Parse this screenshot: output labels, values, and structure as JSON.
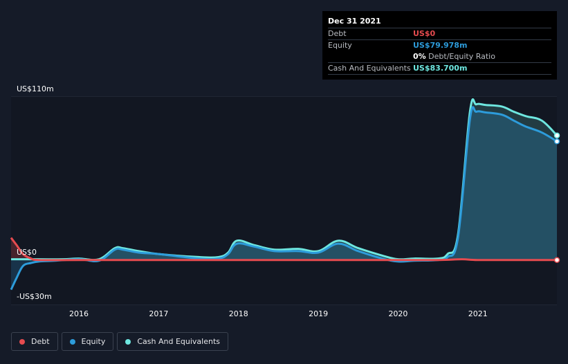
{
  "chart_data": {
    "type": "area",
    "x_labels": [
      "2016",
      "2017",
      "2018",
      "2019",
      "2020",
      "2021"
    ],
    "y_labels": {
      "top": "US$110m",
      "zero": "US$0",
      "bottom": "-US$30m"
    },
    "ylim": [
      -30,
      110
    ],
    "xlim": [
      2015.15,
      2021.99
    ],
    "series": [
      {
        "name": "Debt",
        "color": "#e64b4f",
        "x": [
          2015.15,
          2015.22,
          2015.3,
          2015.4,
          2015.5,
          2016.0,
          2017.0,
          2018.0,
          2019.0,
          2020.0,
          2020.5,
          2020.8,
          2021.0,
          2021.5,
          2021.99
        ],
        "values": [
          15,
          10,
          4,
          1,
          0,
          0,
          0,
          0,
          0,
          0,
          0,
          0.5,
          0,
          0,
          0
        ]
      },
      {
        "name": "Equity",
        "color": "#2d9cdb",
        "x": [
          2015.15,
          2015.22,
          2015.3,
          2015.4,
          2015.5,
          2015.7,
          2016.0,
          2016.25,
          2016.45,
          2016.55,
          2016.75,
          2017.0,
          2017.5,
          2017.75,
          2017.87,
          2017.98,
          2018.2,
          2018.45,
          2018.75,
          2019.0,
          2019.25,
          2019.5,
          2019.8,
          2020.0,
          2020.2,
          2020.5,
          2020.62,
          2020.75,
          2020.9,
          2020.98,
          2021.1,
          2021.3,
          2021.45,
          2021.6,
          2021.8,
          2021.99
        ],
        "values": [
          -20,
          -12,
          -4,
          -2,
          -1,
          -0.5,
          0.5,
          -0.5,
          7,
          7,
          5,
          4,
          1,
          1,
          4,
          11,
          9,
          6,
          6,
          5,
          11,
          6,
          1,
          -1,
          -0.5,
          0,
          2,
          15,
          95,
          100,
          99.5,
          98,
          94,
          90,
          86,
          80
        ]
      },
      {
        "name": "Cash And Equivalents",
        "color": "#6ee7e0",
        "x": [
          2015.15,
          2015.5,
          2015.8,
          2016.0,
          2016.25,
          2016.45,
          2016.55,
          2016.75,
          2017.0,
          2017.5,
          2017.75,
          2017.87,
          2017.98,
          2018.2,
          2018.45,
          2018.75,
          2019.0,
          2019.25,
          2019.5,
          2019.8,
          2020.0,
          2020.2,
          2020.5,
          2020.62,
          2020.75,
          2020.9,
          2020.98,
          2021.1,
          2021.3,
          2021.45,
          2021.6,
          2021.8,
          2021.99
        ],
        "values": [
          0.5,
          0.5,
          0.5,
          1,
          0.5,
          8,
          8,
          6,
          4,
          2,
          2,
          5,
          13,
          10,
          7,
          7.5,
          6,
          13,
          8,
          3,
          0.5,
          1,
          1,
          4,
          17,
          100,
          105,
          104.5,
          103.5,
          100,
          97,
          94,
          84
        ]
      }
    ],
    "tooltip": {
      "date": "Dec 31 2021",
      "rows": [
        {
          "label": "Debt",
          "value": "US$0",
          "color": "#e64b4f"
        },
        {
          "label": "Equity",
          "value": "US$79.978m",
          "color": "#2d9cdb"
        },
        {
          "label": "",
          "value": "0%",
          "suffix": " Debt/Equity Ratio",
          "color": "#ffffff"
        },
        {
          "label": "Cash And Equivalents",
          "value": "US$83.700m",
          "color": "#6ee7e0"
        }
      ]
    },
    "legend": [
      {
        "label": "Debt",
        "color": "#e64b4f"
      },
      {
        "label": "Equity",
        "color": "#2d9cdb"
      },
      {
        "label": "Cash And Equivalents",
        "color": "#6ee7e0"
      }
    ]
  }
}
